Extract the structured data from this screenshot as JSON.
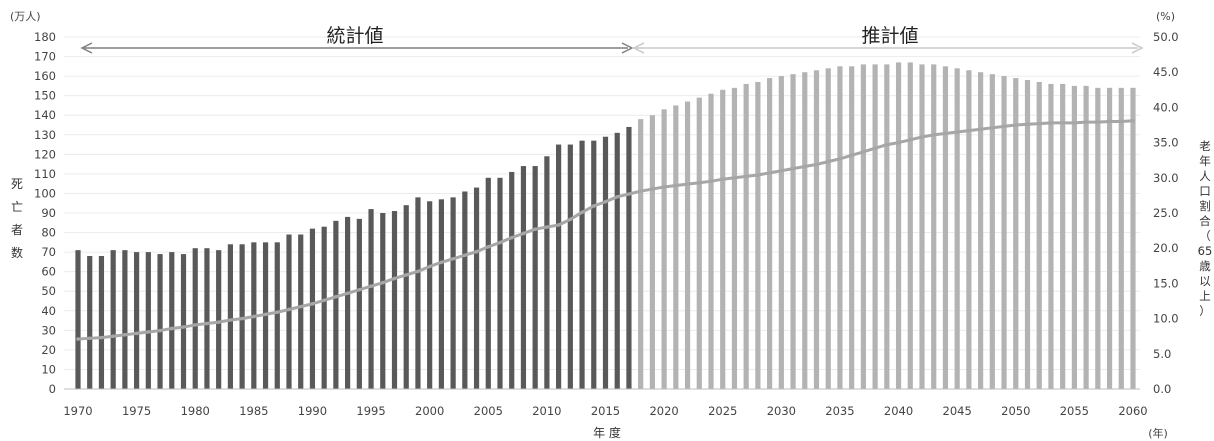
{
  "chart_data": {
    "type": "bar+line",
    "xlabel": "年 度",
    "xunit": "(年)",
    "ylabel_left": [
      "死",
      "亡",
      "者",
      "数"
    ],
    "yunit_left": "(万人)",
    "ylabel_right": [
      "老",
      "年",
      "人",
      "口",
      "割",
      "合",
      "（",
      "65",
      "歳",
      "以",
      "上",
      "）"
    ],
    "yunit_right": "(%)",
    "ylim_left": [
      0,
      180
    ],
    "yticks_left": [
      0,
      10,
      20,
      30,
      40,
      50,
      60,
      70,
      80,
      90,
      100,
      110,
      120,
      130,
      140,
      150,
      160,
      170,
      180
    ],
    "ylim_right": [
      0,
      50
    ],
    "yticks_right": [
      "0.0",
      "5.0",
      "10.0",
      "15.0",
      "20.0",
      "25.0",
      "30.0",
      "35.0",
      "40.0",
      "45.0",
      "50.0"
    ],
    "xticks": [
      1970,
      1975,
      1980,
      1985,
      1990,
      1995,
      2000,
      2005,
      2010,
      2015,
      2020,
      2025,
      2030,
      2035,
      2040,
      2045,
      2050,
      2055,
      2060
    ],
    "annotations": {
      "statistical": "統計値",
      "projected": "推計値"
    },
    "colors": {
      "statistical_bar": "#595959",
      "projected_bar": "#b3b3b3",
      "line": "#a6a6a6",
      "arrow_statistical": "#7f7f7f",
      "arrow_projected": "#c8c8c8"
    },
    "projection_start_year": 2018,
    "series": [
      {
        "name": "死亡者数",
        "axis": "left",
        "years": [
          1970,
          1971,
          1972,
          1973,
          1974,
          1975,
          1976,
          1977,
          1978,
          1979,
          1980,
          1981,
          1982,
          1983,
          1984,
          1985,
          1986,
          1987,
          1988,
          1989,
          1990,
          1991,
          1992,
          1993,
          1994,
          1995,
          1996,
          1997,
          1998,
          1999,
          2000,
          2001,
          2002,
          2003,
          2004,
          2005,
          2006,
          2007,
          2008,
          2009,
          2010,
          2011,
          2012,
          2013,
          2014,
          2015,
          2016,
          2017,
          2018,
          2019,
          2020,
          2021,
          2022,
          2023,
          2024,
          2025,
          2026,
          2027,
          2028,
          2029,
          2030,
          2031,
          2032,
          2033,
          2034,
          2035,
          2036,
          2037,
          2038,
          2039,
          2040,
          2041,
          2042,
          2043,
          2044,
          2045,
          2046,
          2047,
          2048,
          2049,
          2050,
          2051,
          2052,
          2053,
          2054,
          2055,
          2056,
          2057,
          2058,
          2059,
          2060
        ],
        "values": [
          71,
          68,
          68,
          71,
          71,
          70,
          70,
          69,
          70,
          69,
          72,
          72,
          71,
          74,
          74,
          75,
          75,
          75,
          79,
          79,
          82,
          83,
          86,
          88,
          87,
          92,
          90,
          91,
          94,
          98,
          96,
          97,
          98,
          101,
          103,
          108,
          108,
          111,
          114,
          114,
          119,
          125,
          125,
          127,
          127,
          129,
          131,
          134,
          138,
          140,
          143,
          145,
          147,
          149,
          151,
          153,
          154,
          156,
          157,
          159,
          160,
          161,
          162,
          163,
          164,
          165,
          165,
          166,
          166,
          166,
          167,
          167,
          166,
          166,
          165,
          164,
          163,
          162,
          161,
          160,
          159,
          158,
          157,
          156,
          156,
          155,
          155,
          154,
          154,
          154,
          154
        ]
      },
      {
        "name": "老年人口割合（65歳以上）",
        "axis": "right",
        "years": [
          1970,
          1971,
          1972,
          1973,
          1974,
          1975,
          1976,
          1977,
          1978,
          1979,
          1980,
          1981,
          1982,
          1983,
          1984,
          1985,
          1986,
          1987,
          1988,
          1989,
          1990,
          1991,
          1992,
          1993,
          1994,
          1995,
          1996,
          1997,
          1998,
          1999,
          2000,
          2001,
          2002,
          2003,
          2004,
          2005,
          2006,
          2007,
          2008,
          2009,
          2010,
          2011,
          2012,
          2013,
          2014,
          2015,
          2016,
          2017,
          2018,
          2019,
          2020,
          2021,
          2022,
          2023,
          2024,
          2025,
          2026,
          2027,
          2028,
          2029,
          2030,
          2031,
          2032,
          2033,
          2034,
          2035,
          2036,
          2037,
          2038,
          2039,
          2040,
          2041,
          2042,
          2043,
          2044,
          2045,
          2046,
          2047,
          2048,
          2049,
          2050,
          2051,
          2052,
          2053,
          2054,
          2055,
          2056,
          2057,
          2058,
          2059,
          2060
        ],
        "values": [
          7.1,
          7.2,
          7.3,
          7.5,
          7.7,
          7.9,
          8.1,
          8.3,
          8.6,
          8.8,
          9.1,
          9.3,
          9.5,
          9.8,
          10.0,
          10.3,
          10.6,
          10.9,
          11.3,
          11.7,
          12.1,
          12.6,
          13.1,
          13.6,
          14.1,
          14.6,
          15.1,
          15.7,
          16.2,
          16.7,
          17.4,
          18.0,
          18.5,
          19.0,
          19.5,
          20.2,
          20.8,
          21.5,
          22.1,
          22.7,
          23.0,
          23.3,
          24.1,
          25.1,
          26.0,
          26.6,
          27.3,
          27.7,
          28.1,
          28.4,
          28.7,
          28.9,
          29.1,
          29.3,
          29.5,
          29.8,
          30.0,
          30.2,
          30.4,
          30.7,
          31.0,
          31.3,
          31.6,
          31.9,
          32.3,
          32.7,
          33.2,
          33.7,
          34.2,
          34.7,
          35.0,
          35.4,
          35.8,
          36.1,
          36.3,
          36.5,
          36.7,
          36.9,
          37.1,
          37.3,
          37.5,
          37.6,
          37.7,
          37.8,
          37.8,
          37.8,
          37.9,
          37.9,
          38.0,
          38.0,
          38.1
        ]
      }
    ]
  }
}
